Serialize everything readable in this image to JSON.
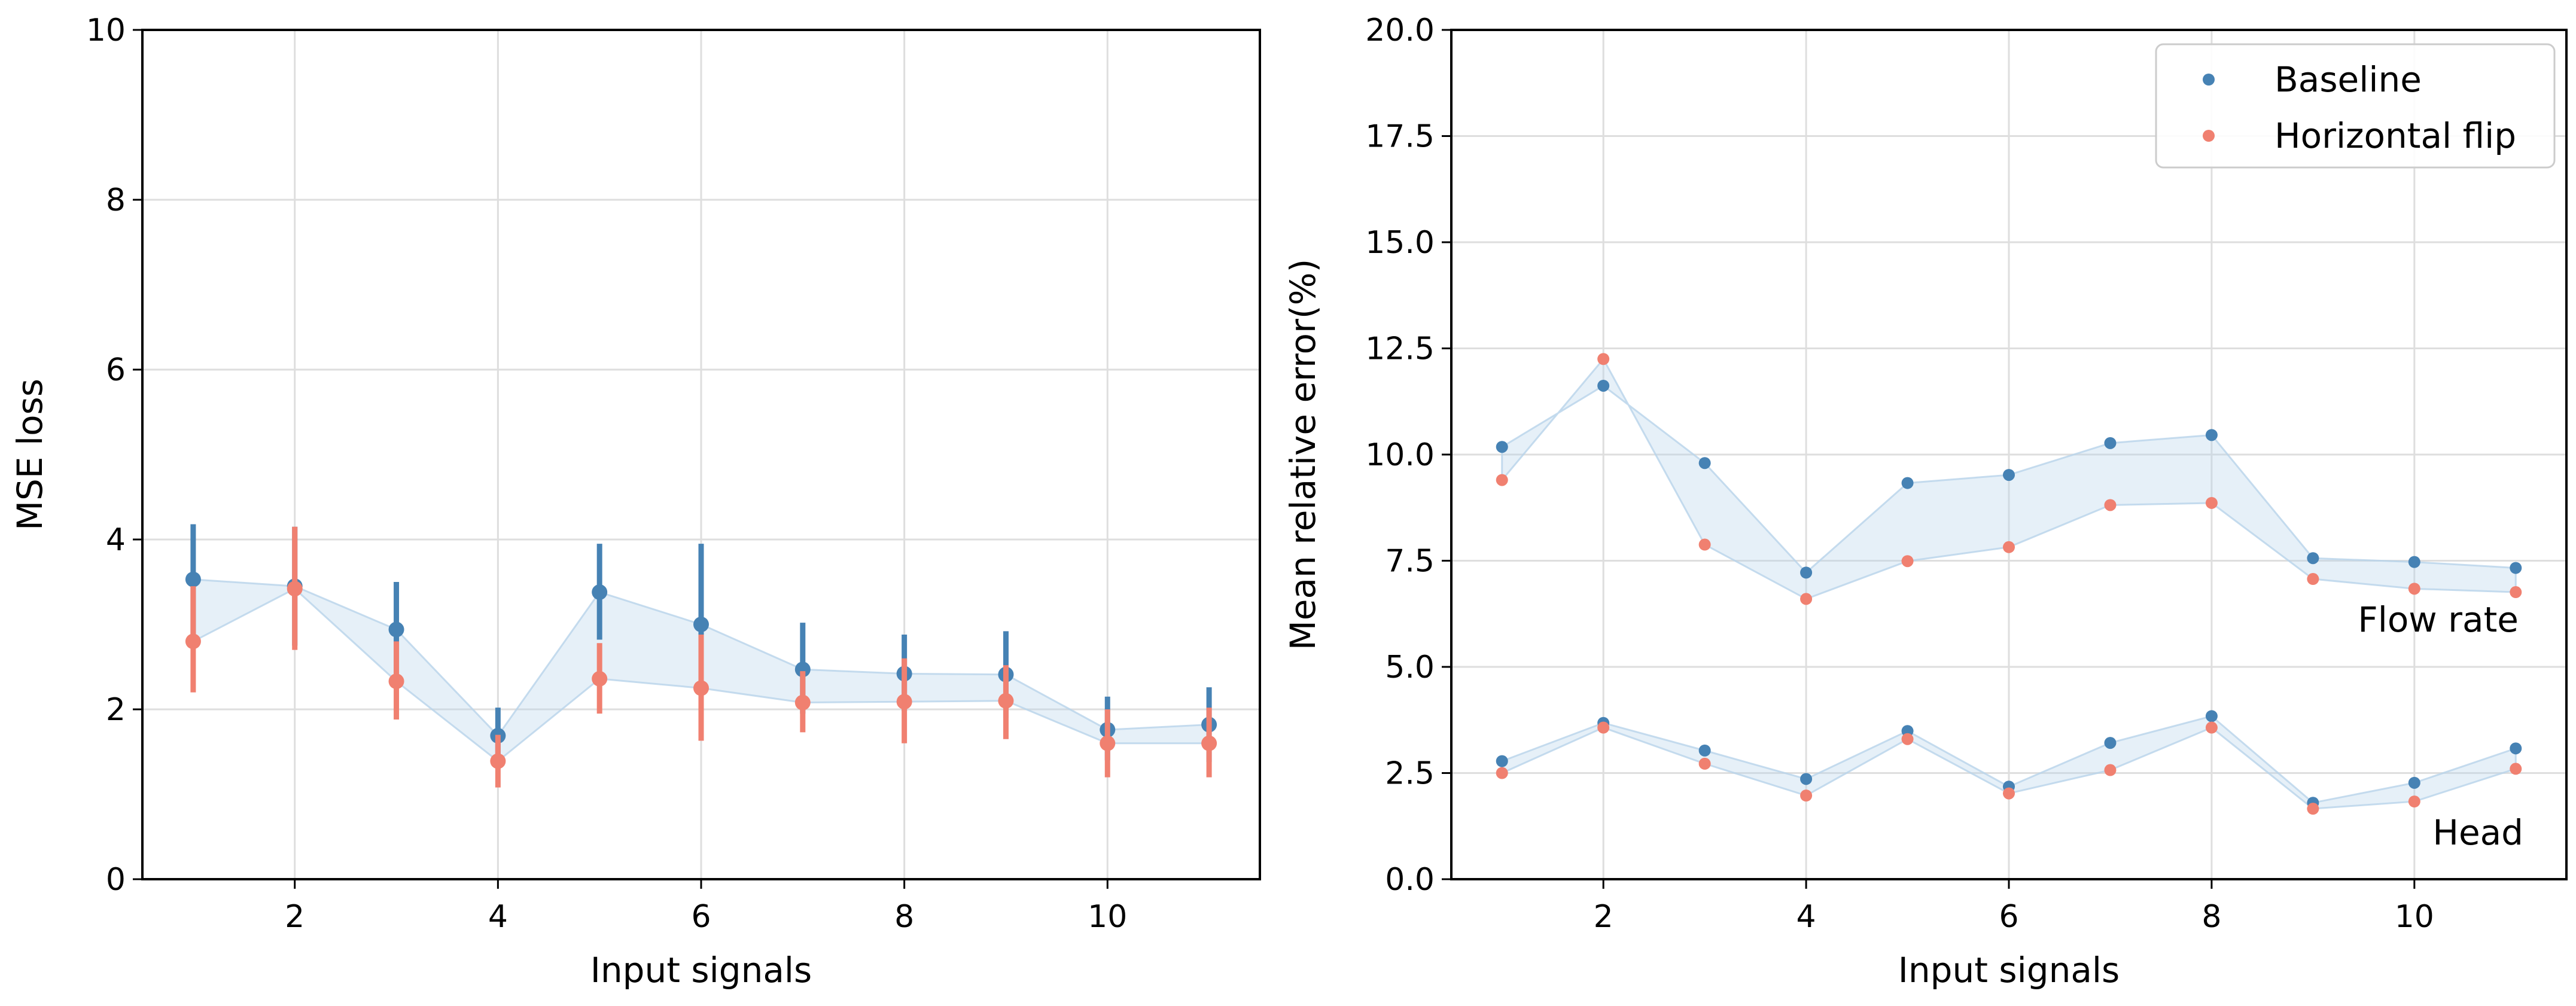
{
  "chart_data": [
    {
      "type": "scatter",
      "panel": "left",
      "xlabel": "Input signals",
      "ylabel": "MSE loss",
      "xlim": [
        0.5,
        11.5
      ],
      "ylim": [
        0,
        10
      ],
      "xticks": [
        2,
        4,
        6,
        8,
        10
      ],
      "yticks": [
        0,
        2,
        4,
        6,
        8,
        10
      ],
      "grid": true,
      "shaded_between_series": true,
      "series": [
        {
          "name": "Baseline",
          "color": "#4682b4",
          "x": [
            1,
            2,
            3,
            4,
            5,
            6,
            7,
            8,
            9,
            10,
            11
          ],
          "values": [
            3.53,
            3.45,
            2.94,
            1.69,
            3.38,
            3.0,
            2.47,
            2.42,
            2.41,
            1.76,
            1.82
          ],
          "err_low": [
            2.88,
            2.75,
            2.4,
            1.38,
            2.82,
            2.05,
            1.95,
            1.98,
            1.9,
            1.4,
            1.38
          ],
          "err_high": [
            4.18,
            4.15,
            3.5,
            2.02,
            3.95,
            3.95,
            3.02,
            2.88,
            2.92,
            2.15,
            2.26
          ]
        },
        {
          "name": "Horizontal flip",
          "color": "#f08070",
          "x": [
            1,
            2,
            3,
            4,
            5,
            6,
            7,
            8,
            9,
            10,
            11
          ],
          "values": [
            2.8,
            3.42,
            2.33,
            1.39,
            2.36,
            2.25,
            2.08,
            2.09,
            2.1,
            1.6,
            1.6
          ],
          "err_low": [
            2.2,
            2.7,
            1.88,
            1.08,
            1.95,
            1.63,
            1.73,
            1.6,
            1.65,
            1.2,
            1.2
          ],
          "err_high": [
            3.45,
            4.15,
            2.8,
            1.7,
            2.78,
            2.88,
            2.45,
            2.6,
            2.52,
            2.0,
            2.02
          ]
        }
      ]
    },
    {
      "type": "scatter",
      "panel": "right",
      "xlabel": "Input signals",
      "ylabel": "Mean relative error(%)",
      "xlim": [
        0.5,
        11.5
      ],
      "ylim": [
        0,
        20
      ],
      "xticks": [
        2,
        4,
        6,
        8,
        10
      ],
      "yticks": [
        0.0,
        2.5,
        5.0,
        7.5,
        10.0,
        12.5,
        15.0,
        17.5,
        20.0
      ],
      "ytick_labels": [
        "0.0",
        "2.5",
        "5.0",
        "7.5",
        "10.0",
        "12.5",
        "15.0",
        "17.5",
        "20.0"
      ],
      "grid": true,
      "legend": {
        "position": "top-right",
        "entries": [
          "Baseline",
          "Horizontal flip"
        ]
      },
      "annotations": [
        "Flow rate",
        "Head"
      ],
      "groups": [
        {
          "name": "Flow rate",
          "series": [
            {
              "name": "Baseline",
              "color": "#4682b4",
              "x": [
                1,
                2,
                3,
                4,
                5,
                6,
                7,
                8,
                9,
                10,
                11
              ],
              "values": [
                10.18,
                11.62,
                9.8,
                7.22,
                9.33,
                9.52,
                10.27,
                10.46,
                7.56,
                7.47,
                7.33
              ]
            },
            {
              "name": "Horizontal flip",
              "color": "#f08070",
              "x": [
                1,
                2,
                3,
                4,
                5,
                6,
                7,
                8,
                9,
                10,
                11
              ],
              "values": [
                9.4,
                12.25,
                7.88,
                6.6,
                7.49,
                7.82,
                8.81,
                8.86,
                7.07,
                6.84,
                6.76
              ]
            }
          ]
        },
        {
          "name": "Head",
          "series": [
            {
              "name": "Baseline",
              "color": "#4682b4",
              "x": [
                1,
                2,
                3,
                4,
                5,
                6,
                7,
                8,
                9,
                10,
                11
              ],
              "values": [
                2.78,
                3.68,
                3.03,
                2.36,
                3.49,
                2.18,
                3.21,
                3.84,
                1.8,
                2.27,
                3.08
              ]
            },
            {
              "name": "Horizontal flip",
              "color": "#f08070",
              "x": [
                1,
                2,
                3,
                4,
                5,
                6,
                7,
                8,
                9,
                10,
                11
              ],
              "values": [
                2.5,
                3.57,
                2.72,
                1.97,
                3.3,
                2.02,
                2.57,
                3.57,
                1.66,
                1.83,
                2.6
              ]
            }
          ]
        }
      ]
    }
  ]
}
